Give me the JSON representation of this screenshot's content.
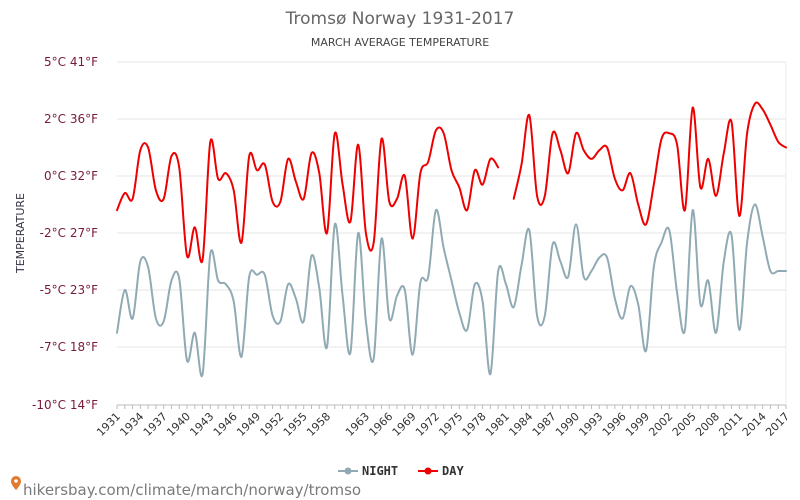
{
  "chart_data": {
    "type": "line",
    "title": "Tromsø Norway 1931-2017",
    "subtitle": "MARCH AVERAGE TEMPERATURE",
    "ylabel": "TEMPERATURE",
    "ylim": [
      -10,
      5
    ],
    "yticks": [
      {
        "value": 5,
        "label": "5°C 41°F"
      },
      {
        "value": 2,
        "label": "2°C 36°F"
      },
      {
        "value": 0,
        "label": "0°C 32°F"
      },
      {
        "value": -2,
        "label": "-2°C 27°F"
      },
      {
        "value": -5,
        "label": "-5°C 23°F"
      },
      {
        "value": -7,
        "label": "-7°C 18°F"
      },
      {
        "value": -10,
        "label": "-10°C 14°F"
      }
    ],
    "x_start": 1931,
    "x_end": 2017,
    "xtick_labels": [
      "1931",
      "1934",
      "1937",
      "1940",
      "1943",
      "1946",
      "1949",
      "1952",
      "1955",
      "1958",
      "1963",
      "1966",
      "1969",
      "1972",
      "1975",
      "1978",
      "1981",
      "1984",
      "1987",
      "1990",
      "1993",
      "1996",
      "1999",
      "2002",
      "2005",
      "2008",
      "2011",
      "2014",
      "2017"
    ],
    "grid": true,
    "legend_position": "bottom",
    "series": [
      {
        "name": "NIGHT",
        "color": "#90aab4",
        "x": [
          1931,
          1932,
          1933,
          1934,
          1935,
          1936,
          1937,
          1938,
          1939,
          1940,
          1941,
          1942,
          1943,
          1944,
          1945,
          1946,
          1947,
          1948,
          1949,
          1950,
          1951,
          1952,
          1953,
          1954,
          1955,
          1956,
          1957,
          1958,
          1959,
          1960,
          1961,
          1962,
          1963,
          1964,
          1965,
          1966,
          1967,
          1968,
          1969,
          1970,
          1971,
          1972,
          1973,
          1974,
          1975,
          1976,
          1977,
          1978,
          1979,
          1980,
          1981,
          1982,
          1983,
          1984,
          1985,
          1986,
          1987,
          1988,
          1989,
          1990,
          1991,
          1992,
          1993,
          1994,
          1995,
          1996,
          1997,
          1998,
          1999,
          2000,
          2001,
          2002,
          2003,
          2004,
          2005,
          2006,
          2007,
          2008,
          2009,
          2010,
          2011,
          2012,
          2013,
          2014,
          2015,
          2016,
          2017
        ],
        "values": [
          -6.5,
          -5.0,
          -6.0,
          -3.5,
          -3.8,
          -6.0,
          -6.1,
          -4.5,
          -4.4,
          -7.7,
          -6.5,
          -8.4,
          -3.1,
          -4.5,
          -4.7,
          -5.4,
          -7.5,
          -4.3,
          -4.2,
          -4.2,
          -5.9,
          -6.1,
          -4.7,
          -5.3,
          -6.1,
          -3.2,
          -4.9,
          -7.0,
          -1.7,
          -5.2,
          -7.3,
          -2.0,
          -6.1,
          -7.6,
          -2.3,
          -6.0,
          -5.2,
          -5.0,
          -7.4,
          -4.6,
          -4.3,
          -1.2,
          -2.8,
          -4.5,
          -5.8,
          -6.4,
          -4.7,
          -5.4,
          -8.4,
          -4.0,
          -4.7,
          -5.6,
          -3.7,
          -1.9,
          -5.9,
          -5.9,
          -2.6,
          -3.5,
          -4.3,
          -1.7,
          -4.3,
          -4.0,
          -3.3,
          -3.3,
          -5.3,
          -6.0,
          -4.8,
          -5.5,
          -7.2,
          -3.8,
          -2.5,
          -1.9,
          -5.1,
          -6.4,
          -1.2,
          -5.5,
          -4.5,
          -6.5,
          -3.5,
          -2.1,
          -6.4,
          -2.5,
          -1.0,
          -2.2,
          -4.0,
          -4.0,
          -4.0
        ]
      },
      {
        "name": "DAY",
        "color": "#ee0000",
        "x": [
          1931,
          1932,
          1933,
          1934,
          1935,
          1936,
          1937,
          1938,
          1939,
          1940,
          1941,
          1942,
          1943,
          1944,
          1945,
          1946,
          1947,
          1948,
          1949,
          1950,
          1951,
          1952,
          1953,
          1954,
          1955,
          1956,
          1957,
          1958,
          1959,
          1960,
          1961,
          1962,
          1963,
          1964,
          1965,
          1966,
          1967,
          1968,
          1969,
          1970,
          1971,
          1972,
          1973,
          1974,
          1975,
          1976,
          1977,
          1978,
          1979,
          1980,
          1982,
          1983,
          1984,
          1985,
          1986,
          1987,
          1988,
          1989,
          1990,
          1991,
          1992,
          1993,
          1994,
          1995,
          1996,
          1997,
          1998,
          1999,
          2000,
          2001,
          2002,
          2003,
          2004,
          2005,
          2006,
          2007,
          2008,
          2009,
          2010,
          2011,
          2012,
          2013,
          2014,
          2015,
          2016,
          2017
        ],
        "values": [
          -1.2,
          -0.6,
          -0.8,
          0.9,
          1.0,
          -0.5,
          -0.8,
          0.7,
          0.3,
          -3.2,
          -1.8,
          -3.4,
          1.2,
          -0.1,
          0.1,
          -0.5,
          -2.5,
          0.7,
          0.2,
          0.4,
          -0.9,
          -0.9,
          0.6,
          -0.2,
          -0.8,
          0.8,
          0.1,
          -2.0,
          1.5,
          -0.3,
          -1.6,
          1.1,
          -2.0,
          -2.5,
          1.3,
          -0.9,
          -0.8,
          0.0,
          -2.3,
          0.1,
          0.5,
          1.6,
          1.5,
          0.2,
          -0.4,
          -1.2,
          0.2,
          -0.3,
          0.6,
          0.3,
          -0.8,
          0.4,
          2.2,
          -0.7,
          -0.7,
          1.5,
          0.9,
          0.1,
          1.5,
          0.9,
          0.6,
          0.9,
          1.0,
          -0.1,
          -0.5,
          0.1,
          -1.0,
          -1.7,
          -0.3,
          1.3,
          1.5,
          1.1,
          -1.2,
          2.6,
          -0.4,
          0.6,
          -0.7,
          0.8,
          1.9,
          -1.4,
          1.5,
          2.8,
          2.5,
          1.8,
          1.2,
          1.0
        ]
      }
    ]
  },
  "watermark": "hikersbay.com/climate/march/norway/tromso"
}
